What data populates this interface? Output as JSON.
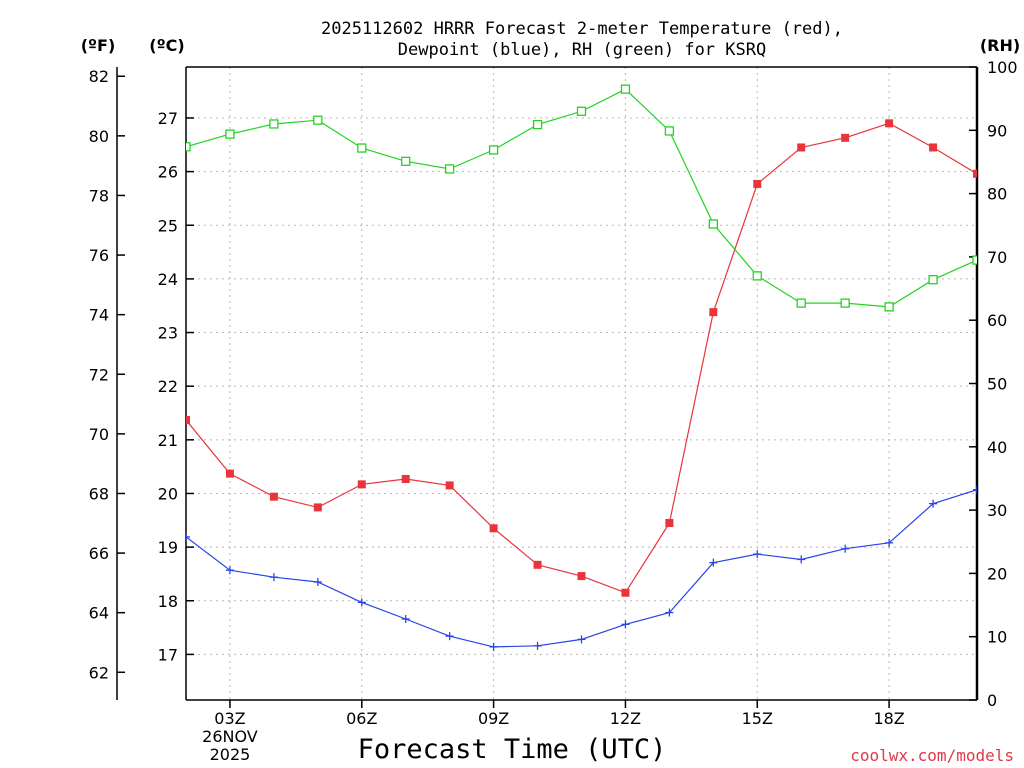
{
  "chart_data": {
    "type": "line",
    "title_line1": "2025112602 HRRR Forecast 2-meter Temperature (red),",
    "title_line2": "Dewpoint (blue), RH (green) for KSRQ",
    "xlabel": "Forecast Time (UTC)",
    "credit": "coolwx.com/models",
    "units": {
      "fahrenheit": "(ºF)",
      "celsius": "(ºC)",
      "rh": "(RH)"
    },
    "x_hours": [
      2,
      3,
      4,
      5,
      6,
      7,
      8,
      9,
      10,
      11,
      12,
      13,
      14,
      15,
      16,
      17,
      18,
      19,
      20
    ],
    "x_ticks": [
      {
        "hour": 3,
        "label": "03Z",
        "sub1": "26NOV",
        "sub2": "2025"
      },
      {
        "hour": 6,
        "label": "06Z"
      },
      {
        "hour": 9,
        "label": "09Z"
      },
      {
        "hour": 12,
        "label": "12Z"
      },
      {
        "hour": 15,
        "label": "15Z"
      },
      {
        "hour": 18,
        "label": "18Z"
      }
    ],
    "xlim": [
      2,
      20
    ],
    "celsius_ticks": [
      "17",
      "18",
      "19",
      "20",
      "21",
      "22",
      "23",
      "24",
      "25",
      "26",
      "27"
    ],
    "fahrenheit_ticks": [
      "62",
      "64",
      "66",
      "68",
      "70",
      "72",
      "74",
      "76",
      "78",
      "80",
      "82"
    ],
    "rh_ticks": [
      "0",
      "10",
      "20",
      "30",
      "40",
      "50",
      "60",
      "70",
      "80",
      "90",
      "100"
    ],
    "ylim_celsius": [
      16.15,
      27.95
    ],
    "ylim_rh": [
      0,
      100
    ],
    "series": [
      {
        "name": "Temperature",
        "color": "#e8343a",
        "marker": "filled-square",
        "axis": "celsius",
        "values": [
          21.37,
          20.37,
          19.94,
          19.74,
          20.17,
          20.27,
          20.15,
          19.35,
          18.67,
          18.46,
          18.15,
          19.45,
          23.38,
          25.77,
          26.45,
          26.63,
          26.9,
          26.45,
          25.96
        ]
      },
      {
        "name": "Dewpoint",
        "color": "#2844e8",
        "marker": "plus",
        "axis": "celsius",
        "values": [
          19.19,
          18.57,
          18.44,
          18.35,
          17.97,
          17.66,
          17.34,
          17.14,
          17.16,
          17.28,
          17.56,
          17.78,
          18.71,
          18.87,
          18.77,
          18.97,
          19.08,
          19.81,
          20.07
        ]
      },
      {
        "name": "RH",
        "color": "#22d422",
        "marker": "open-square",
        "axis": "rh",
        "values": [
          87.4,
          89.4,
          91.0,
          91.6,
          87.2,
          85.1,
          83.9,
          86.9,
          90.9,
          93.0,
          96.5,
          89.9,
          75.2,
          67.0,
          62.7,
          62.7,
          62.1,
          66.4,
          69.5
        ]
      }
    ],
    "grid": true
  }
}
